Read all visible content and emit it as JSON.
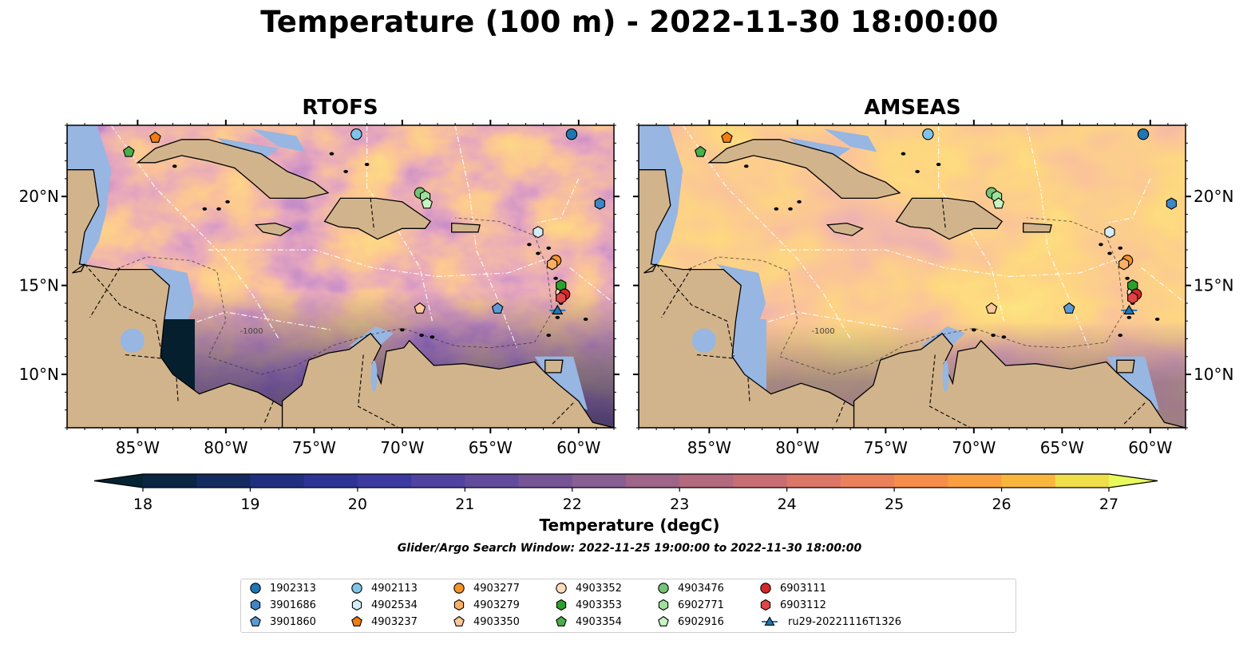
{
  "title": "Temperature (100 m) - 2022-11-30 18:00:00",
  "panels": [
    {
      "id": "rtofs",
      "title": "RTOFS"
    },
    {
      "id": "amseas",
      "title": "AMSEAS"
    }
  ],
  "map": {
    "lon_range": [
      -89,
      -58
    ],
    "lat_range": [
      7,
      24
    ],
    "lon_ticks": [
      -85,
      -80,
      -75,
      -70,
      -65,
      -60
    ],
    "lon_tick_labels": [
      "85°W",
      "80°W",
      "75°W",
      "70°W",
      "65°W",
      "60°W"
    ],
    "lat_ticks": [
      10,
      15,
      20
    ],
    "lat_tick_labels": [
      "10°N",
      "15°N",
      "20°N"
    ],
    "land_color": "#d2b48c",
    "shallow_water_color": "#97b6e1",
    "contour_label": "-1000"
  },
  "colorbar": {
    "label": "Temperature (degC)",
    "min": 18,
    "max": 27,
    "step": 0.5,
    "tick_values": [
      18,
      19,
      20,
      21,
      22,
      23,
      24,
      25,
      26,
      27
    ],
    "tick_labels": [
      "18",
      "19",
      "20",
      "21",
      "22",
      "23",
      "24",
      "25",
      "26",
      "27"
    ],
    "colormap": "thermal",
    "extend": "both"
  },
  "search_window": "Glider/Argo Search Window: 2022-11-25 19:00:00 to 2022-11-30 18:00:00",
  "legend": {
    "columns": 7,
    "items": [
      {
        "label": "1902313",
        "marker": "circle",
        "color": "#1f77b4"
      },
      {
        "label": "3901686",
        "marker": "hexagon",
        "color": "#3d86c6"
      },
      {
        "label": "3901860",
        "marker": "pentagon",
        "color": "#5b9bd5"
      },
      {
        "label": "4902113",
        "marker": "circle",
        "color": "#7fc4e8"
      },
      {
        "label": "4902534",
        "marker": "hexagon",
        "color": "#d6ecf9"
      },
      {
        "label": "4903237",
        "marker": "pentagon",
        "color": "#f07d10"
      },
      {
        "label": "4903277",
        "marker": "circle",
        "color": "#f5932a"
      },
      {
        "label": "4903279",
        "marker": "hexagon",
        "color": "#f9b064"
      },
      {
        "label": "4903350",
        "marker": "pentagon",
        "color": "#fcc79a"
      },
      {
        "label": "4903352",
        "marker": "circle",
        "color": "#fddcbc"
      },
      {
        "label": "4903353",
        "marker": "hexagon",
        "color": "#2ca02c"
      },
      {
        "label": "4903354",
        "marker": "pentagon",
        "color": "#4aae4a"
      },
      {
        "label": "4903476",
        "marker": "circle",
        "color": "#74c476"
      },
      {
        "label": "6902771",
        "marker": "hexagon",
        "color": "#9de29a"
      },
      {
        "label": "6902916",
        "marker": "pentagon",
        "color": "#c7f4c2"
      },
      {
        "label": "6903111",
        "marker": "circle",
        "color": "#d62728"
      },
      {
        "label": "6903112",
        "marker": "hexagon",
        "color": "#e04646"
      },
      {
        "label": "ru29-20221116T1326",
        "marker": "triangle-line",
        "color": "#1f77b4"
      }
    ]
  },
  "platforms": [
    {
      "id": "1902313",
      "lon": -60.4,
      "lat": 23.5
    },
    {
      "id": "3901686",
      "lon": -58.8,
      "lat": 19.6
    },
    {
      "id": "3901860",
      "lon": -64.6,
      "lat": 13.7
    },
    {
      "id": "4902113",
      "lon": -72.6,
      "lat": 23.5
    },
    {
      "id": "4902534",
      "lon": -62.3,
      "lat": 18.0
    },
    {
      "id": "4903237",
      "lon": -84.0,
      "lat": 23.3
    },
    {
      "id": "4903277",
      "lon": -61.3,
      "lat": 16.4
    },
    {
      "id": "4903279",
      "lon": -61.5,
      "lat": 16.2
    },
    {
      "id": "4903350",
      "lon": -69.0,
      "lat": 13.7
    },
    {
      "id": "4903352",
      "lon": -61.0,
      "lat": 14.6
    },
    {
      "id": "4903353",
      "lon": -61.0,
      "lat": 15.0
    },
    {
      "id": "4903354",
      "lon": -85.5,
      "lat": 22.5
    },
    {
      "id": "4903476",
      "lon": -69.0,
      "lat": 20.2
    },
    {
      "id": "6902771",
      "lon": -68.7,
      "lat": 20.0
    },
    {
      "id": "6902916",
      "lon": -68.6,
      "lat": 19.6
    },
    {
      "id": "6903111",
      "lon": -60.8,
      "lat": 14.5
    },
    {
      "id": "6903112",
      "lon": -61.0,
      "lat": 14.3
    },
    {
      "id": "ru29-20221116T1326",
      "lon": -61.2,
      "lat": 13.6
    }
  ]
}
